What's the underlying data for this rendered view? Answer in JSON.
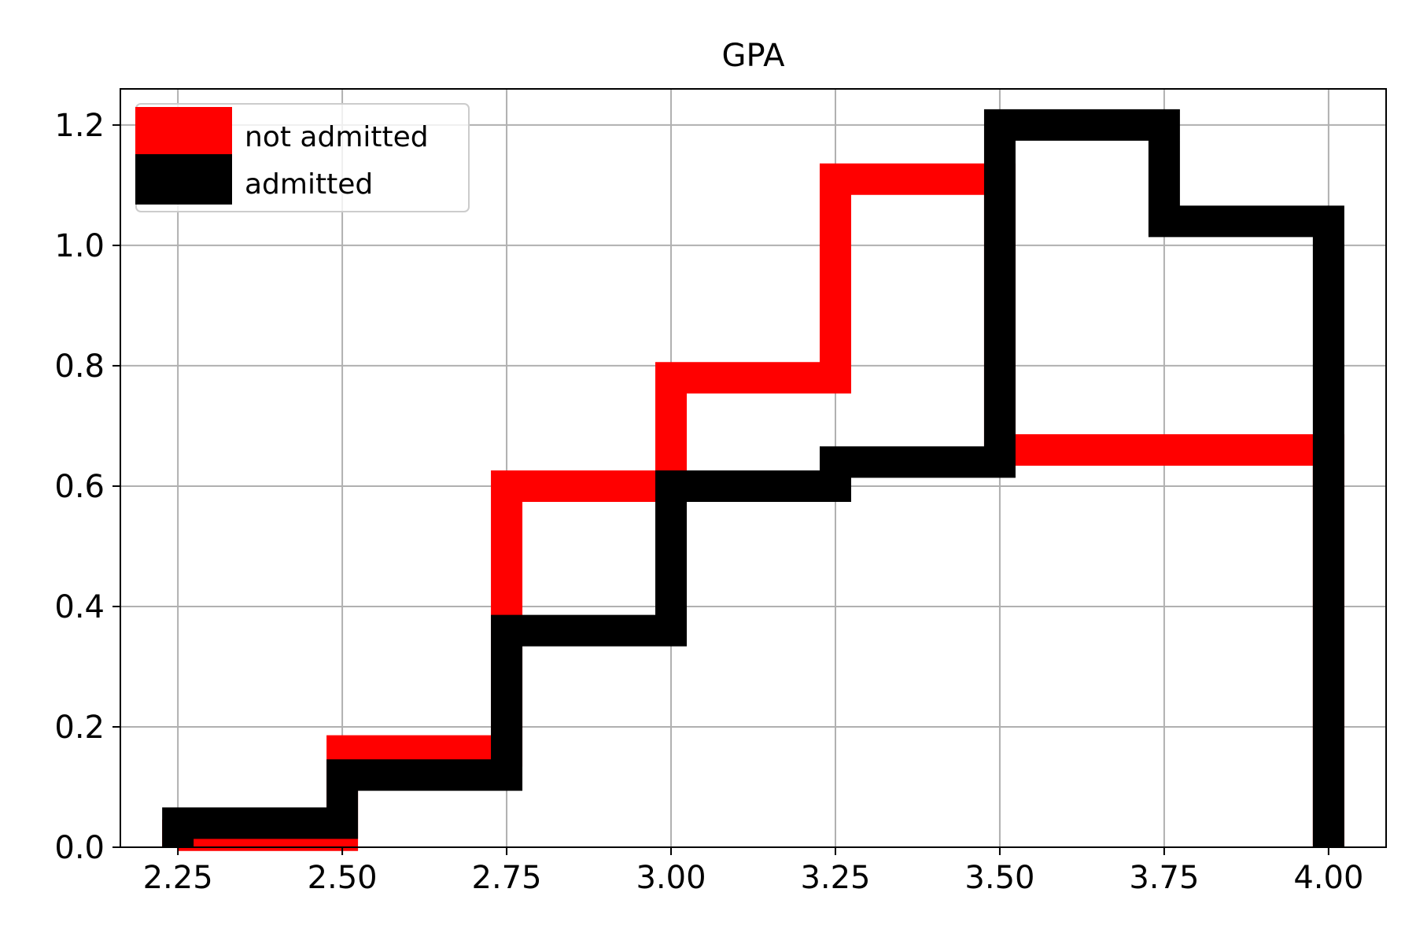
{
  "chart_data": {
    "type": "histogram-step",
    "title": "GPA",
    "xlabel": "",
    "ylabel": "",
    "xlim": [
      2.1625,
      4.0875
    ],
    "ylim": [
      0,
      1.26
    ],
    "xticks": [
      "2.25",
      "2.50",
      "2.75",
      "3.00",
      "3.25",
      "3.50",
      "3.75",
      "4.00"
    ],
    "yticks": [
      "0.0",
      "0.2",
      "0.4",
      "0.6",
      "0.8",
      "1.0",
      "1.2"
    ],
    "grid": true,
    "legend_position": "top-left",
    "series": [
      {
        "name": "not admitted",
        "color": "#ff0000",
        "bin_edges": [
          2.25,
          2.5,
          2.75,
          3.0,
          3.25,
          3.5,
          4.0
        ],
        "values": [
          0.02,
          0.16,
          0.6,
          0.78,
          1.11,
          0.66
        ]
      },
      {
        "name": "admitted",
        "color": "#000000",
        "bin_edges": [
          2.25,
          2.5,
          2.75,
          3.0,
          3.25,
          3.5,
          3.75,
          4.0
        ],
        "values": [
          0.04,
          0.12,
          0.36,
          0.6,
          0.64,
          1.2,
          1.04
        ]
      }
    ]
  }
}
